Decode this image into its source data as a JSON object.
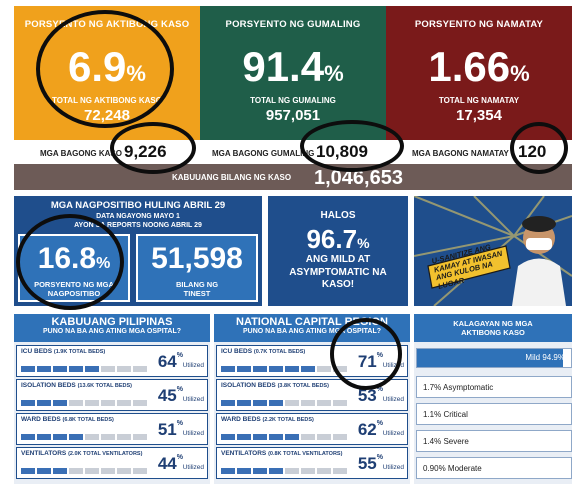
{
  "top": {
    "aktibo": {
      "title": "PORSYENTO NG AKTIBONG KASO",
      "value": "6.9",
      "pct": "%",
      "sublabel": "TOTAL NG AKTIBONG KASO",
      "subval": "72,248",
      "new_label": "MGA BAGONG KASO",
      "new_val": "9,226",
      "color": "#f0a11c"
    },
    "gumaling": {
      "title": "PORSYENTO NG GUMALING",
      "value": "91.4",
      "pct": "%",
      "sublabel": "TOTAL NG GUMALING",
      "subval": "957,051",
      "new_label": "MGA BAGONG GUMALING",
      "new_val": "10,809",
      "color": "#1f5e49"
    },
    "namatay": {
      "title": "PORSYENTO NG NAMATAY",
      "value": "1.66",
      "pct": "%",
      "sublabel": "TOTAL NG NAMATAY",
      "subval": "17,354",
      "new_label": "MGA BAGONG NAMATAY",
      "new_val": "120",
      "color": "#7a1a1a"
    }
  },
  "kabuuang": {
    "label": "KABUUANG BILANG NG KASO",
    "value": "1,046,653"
  },
  "nagpositibo": {
    "title": "MGA NAGPOSITIBO HULING ABRIL 29",
    "line1": "DATA NGAYONG MAYO 1",
    "line2": "AYON SA REPORTS NOONG ABRIL 29",
    "rate_value": "16.8",
    "rate_pct": "%",
    "rate_label": "PORSYENTO NG MGA NAGPOSITIBO",
    "tested_value": "51,598",
    "tested_label": "BILANG NG TINEST"
  },
  "asymptomatic": {
    "halos": "HALOS",
    "value": "96.7",
    "pct": "%",
    "text": "ANG MILD AT ASYMPTOMATIC NA KASO!"
  },
  "poster": {
    "text": "U-SANITIZE ANG KAMAY AT IWASAN ANG KULOB NA LUGAR"
  },
  "pilipinas": {
    "title": "KABUUANG PILIPINAS",
    "subtitle": "PUNO NA BA ANG ATING MGA OSPITAL?",
    "rows": [
      {
        "label": "ICU BEDS",
        "total": "(1.9K TOTAL BEDS)",
        "pct": "64",
        "filled": 6
      },
      {
        "label": "ISOLATION BEDS",
        "total": "(13.6K TOTAL BEDS)",
        "pct": "45",
        "filled": 4
      },
      {
        "label": "WARD BEDS",
        "total": "(6.8K TOTAL BEDS)",
        "pct": "51",
        "filled": 5
      },
      {
        "label": "VENTILATORS",
        "total": "(2.0K TOTAL VENTILATORS)",
        "pct": "44",
        "filled": 4
      }
    ]
  },
  "ncr": {
    "title": "NATIONAL CAPITAL REGION",
    "subtitle": "PUNO NA BA ANG ATING MGA OSPITAL?",
    "rows": [
      {
        "label": "ICU BEDS",
        "total": "(0.7K TOTAL BEDS)",
        "pct": "71",
        "filled": 7
      },
      {
        "label": "ISOLATION BEDS",
        "total": "(3.8K TOTAL BEDS)",
        "pct": "53",
        "filled": 5
      },
      {
        "label": "WARD BEDS",
        "total": "(2.2K TOTAL BEDS)",
        "pct": "62",
        "filled": 6
      },
      {
        "label": "VENTILATORS",
        "total": "(0.8K TOTAL VENTILATORS)",
        "pct": "55",
        "filled": 5
      }
    ]
  },
  "utilized": "Utilized",
  "pct_sign": "%",
  "kalagayan": {
    "title": "KALAGAYAN NG MGA AKTIBONG KASO",
    "mild": "Mild 94.9%",
    "mild_fraction": 0.949,
    "items": [
      "1.7% Asymptomatic",
      "1.1% Critical",
      "1.4% Severe",
      "0.90% Moderate"
    ]
  },
  "colors": {
    "blue_dark": "#1f4e8c",
    "blue_mid": "#2f72b8",
    "bar_fill": "#3a6fb5",
    "bar_empty": "#c9ced6",
    "band": "#6d5b57"
  }
}
